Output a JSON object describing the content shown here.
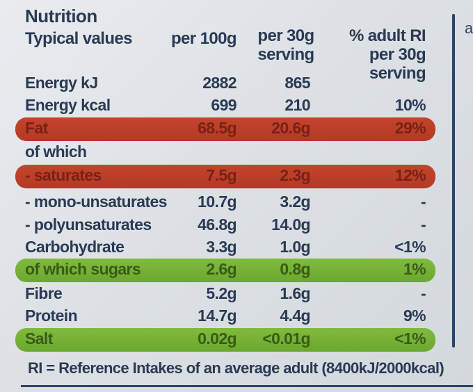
{
  "title": "Nutrition",
  "headers": {
    "typical": "Typical values",
    "per100": "per 100g",
    "per30_line1": "per 30g",
    "per30_line2": "serving",
    "ri_line1": "% adult RI",
    "ri_line2": "per 30g serving"
  },
  "rows": [
    {
      "label": "Energy kJ",
      "per100": "2882",
      "per30": "865",
      "ri": ""
    },
    {
      "label": "Energy kcal",
      "per100": "699",
      "per30": "210",
      "ri": "10%"
    },
    {
      "label": "Fat",
      "per100": "68.5g",
      "per30": "20.6g",
      "ri": "29%"
    },
    {
      "label": "of which",
      "per100": "",
      "per30": "",
      "ri": ""
    },
    {
      "label": "- saturates",
      "per100": "7.5g",
      "per30": "2.3g",
      "ri": "12%"
    },
    {
      "label": "- mono-unsaturates",
      "per100": "10.7g",
      "per30": "3.2g",
      "ri": "-"
    },
    {
      "label": "- polyunsaturates",
      "per100": "46.8g",
      "per30": "14.0g",
      "ri": "-"
    },
    {
      "label": "Carbohydrate",
      "per100": "3.3g",
      "per30": "1.0g",
      "ri": "<1%"
    },
    {
      "label": "of which sugars",
      "per100": "2.6g",
      "per30": "0.8g",
      "ri": "1%"
    },
    {
      "label": "Fibre",
      "per100": "5.2g",
      "per30": "1.6g",
      "ri": "-"
    },
    {
      "label": "Protein",
      "per100": "14.7g",
      "per30": "4.4g",
      "ri": "9%"
    },
    {
      "label": "Salt",
      "per100": "0.02g",
      "per30": "<0.01g",
      "ri": "<1%"
    }
  ],
  "highlight_colors": {
    "high": "#c4442c",
    "low": "#7fbb3c"
  },
  "edge_text": "a",
  "footer": "RI = Reference Intakes of an average adult (8400kJ/2000kcal)"
}
